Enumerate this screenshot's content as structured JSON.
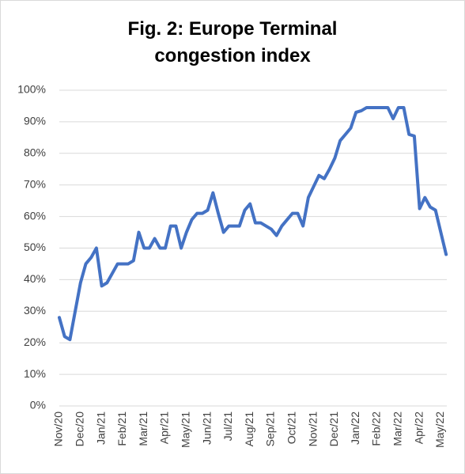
{
  "chart_data": {
    "type": "line",
    "title": "Fig. 2: Europe Terminal congestion index",
    "categories": [
      "Nov/20",
      null,
      null,
      null,
      "Dec/20",
      null,
      null,
      null,
      "Jan/21",
      null,
      null,
      null,
      "Feb/21",
      null,
      null,
      null,
      "Mar/21",
      null,
      null,
      null,
      "Apr/21",
      null,
      null,
      null,
      "May/21",
      null,
      null,
      null,
      "Jun/21",
      null,
      null,
      null,
      "Jul/21",
      null,
      null,
      null,
      "Aug/21",
      null,
      null,
      null,
      "Sep/21",
      null,
      null,
      null,
      "Oct/21",
      null,
      null,
      null,
      "Nov/21",
      null,
      null,
      null,
      "Dec/21",
      null,
      null,
      null,
      "Jan/22",
      null,
      null,
      null,
      "Feb/22",
      null,
      null,
      null,
      "Mar/22",
      null,
      null,
      null,
      "Apr/22",
      null,
      null,
      null,
      "May/22",
      null
    ],
    "series": [
      {
        "color": "#4472c4",
        "values": [
          28,
          22,
          21,
          30,
          39,
          45,
          47,
          50,
          38,
          39,
          42,
          45,
          45,
          45,
          46,
          55,
          50,
          50,
          53,
          50,
          50,
          57,
          57,
          50,
          55,
          59,
          61,
          61,
          62,
          67.5,
          61,
          55,
          57,
          57,
          57,
          62,
          64,
          58,
          58,
          57,
          56,
          54,
          57,
          59,
          61,
          61,
          57,
          66,
          69.5,
          73,
          72,
          75,
          78.5,
          84,
          86,
          88,
          93,
          93.5,
          94.5,
          94.5,
          94.5,
          94.5,
          94.5,
          91,
          94.5,
          94.5,
          86,
          85.5,
          62.5,
          66,
          63,
          62,
          55,
          48
        ]
      }
    ],
    "ylim": [
      0,
      100
    ],
    "yticks": [
      {
        "value": 0,
        "label": "0%"
      },
      {
        "value": 10,
        "label": "10%"
      },
      {
        "value": 20,
        "label": "20%"
      },
      {
        "value": 30,
        "label": "30%"
      },
      {
        "value": 40,
        "label": "40%"
      },
      {
        "value": 50,
        "label": "50%"
      },
      {
        "value": 60,
        "label": "60%"
      },
      {
        "value": 70,
        "label": "70%"
      },
      {
        "value": 80,
        "label": "80%"
      },
      {
        "value": 90,
        "label": "90%"
      },
      {
        "value": 100,
        "label": "100%"
      }
    ],
    "grid": true
  }
}
